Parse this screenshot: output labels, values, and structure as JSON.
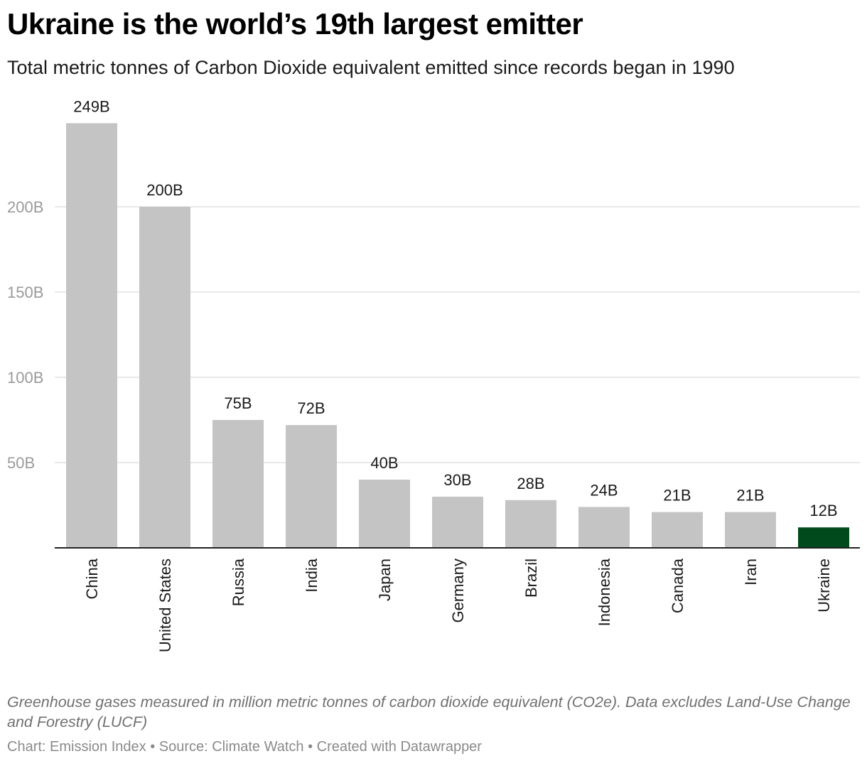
{
  "header": {
    "title": "Ukraine is the world’s 19th largest emitter",
    "subtitle": "Total metric tonnes of Carbon Dioxide equivalent emitted since records began in 1990"
  },
  "footer": {
    "note": "Greenhouse gases measured in million metric tonnes of carbon dioxide equivalent (CO2e). Data excludes Land-Use Change and Forestry (LUCF)",
    "credit": "Chart: Emission Index • Source: Climate Watch • Created with Datawrapper"
  },
  "colors": {
    "bar": "#c4c4c4",
    "highlight": "#004a1c",
    "gridline": "#e2e2e2",
    "baseline": "#222222"
  },
  "chart_data": {
    "type": "bar",
    "orientation": "vertical",
    "categories": [
      "China",
      "United States",
      "Russia",
      "India",
      "Japan",
      "Germany",
      "Brazil",
      "Indonesia",
      "Canada",
      "Iran",
      "Ukraine"
    ],
    "values": [
      249,
      200,
      75,
      72,
      40,
      30,
      28,
      24,
      21,
      21,
      12
    ],
    "value_labels": [
      "249B",
      "200B",
      "75B",
      "72B",
      "40B",
      "30B",
      "28B",
      "24B",
      "21B",
      "21B",
      "12B"
    ],
    "highlight_category": "Ukraine",
    "ylim": [
      0,
      250
    ],
    "yticks": [
      50,
      100,
      150,
      200
    ],
    "ytick_labels": [
      "50B",
      "100B",
      "150B",
      "200B"
    ],
    "grid": true,
    "legend": "none"
  }
}
